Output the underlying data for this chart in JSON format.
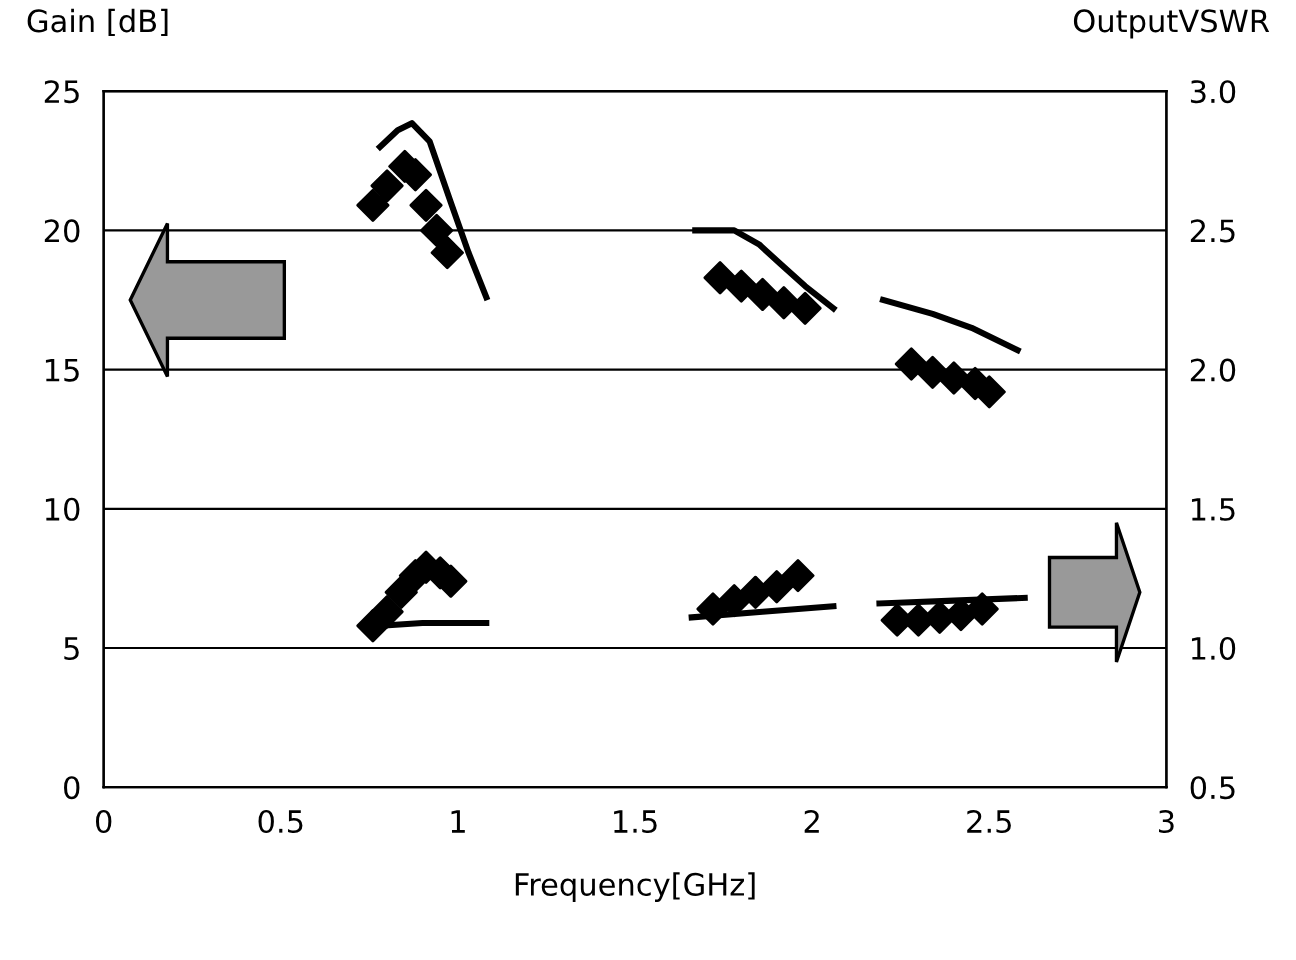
{
  "chart_data": {
    "type": "line",
    "xlabel": "Frequency[GHz]",
    "ylabel": "Gain [dB]",
    "y2label": "OutputVSWR",
    "xlim": [
      0,
      3
    ],
    "xticks": [
      0,
      0.5,
      1,
      1.5,
      2,
      2.5,
      3
    ],
    "ylim": [
      0,
      25
    ],
    "yticks": [
      0,
      5,
      10,
      15,
      20,
      25
    ],
    "y2lim": [
      0.5,
      3.0
    ],
    "y2ticks": [
      0.5,
      {
        "value": 1.0,
        "label": "1.0"
      },
      1.5,
      {
        "value": 2.0,
        "label": "2.0"
      },
      2.5,
      {
        "value": 3.0,
        "label": "3.0"
      }
    ],
    "grid": "y",
    "series": [
      {
        "color": "#000000",
        "marker": "none",
        "x": [
          0.78,
          0.83,
          0.87,
          0.92,
          0.98,
          1.03,
          1.08,
          1.5,
          1.67,
          1.78,
          1.85,
          1.91,
          1.98,
          2.06,
          2.1,
          2.2,
          2.34,
          2.45,
          2.58
        ],
        "values": [
          23.0,
          23.6,
          23.85,
          23.2,
          21.0,
          19.2,
          17.6,
          null,
          20.0,
          20.0,
          19.5,
          18.8,
          18.0,
          17.2,
          null,
          17.5,
          17.0,
          16.5,
          15.7
        ]
      },
      {
        "type": "scatter",
        "color": "#000000",
        "marker": "diamond",
        "x": [
          0.76,
          0.8,
          0.85,
          0.88,
          0.91,
          0.94,
          0.97,
          1.74,
          1.8,
          1.86,
          1.92,
          1.98,
          2.28,
          2.34,
          2.4,
          2.46,
          2.5
        ],
        "values": [
          20.9,
          21.6,
          22.3,
          22.0,
          20.9,
          20.0,
          19.2,
          18.3,
          18.0,
          17.7,
          17.4,
          17.2,
          15.2,
          14.9,
          14.7,
          14.5,
          14.2
        ]
      },
      {
        "axis": "y2",
        "color": "#000000",
        "marker": "none",
        "x": [
          0.78,
          0.9,
          1.08,
          1.5,
          1.66,
          1.86,
          2.06,
          2.1,
          2.19,
          2.4,
          2.6
        ],
        "values": [
          1.08,
          1.09,
          1.09,
          null,
          1.11,
          1.13,
          1.15,
          null,
          1.16,
          1.17,
          1.18
        ]
      },
      {
        "type": "scatter",
        "axis": "y2",
        "color": "#000000",
        "marker": "diamond",
        "x": [
          0.76,
          0.8,
          0.84,
          0.88,
          0.91,
          0.95,
          0.98,
          1.72,
          1.78,
          1.84,
          1.9,
          1.96,
          2.24,
          2.3,
          2.36,
          2.42,
          2.48
        ],
        "values": [
          1.08,
          1.13,
          1.2,
          1.26,
          1.29,
          1.27,
          1.24,
          1.14,
          1.17,
          1.2,
          1.22,
          1.26,
          1.1,
          1.1,
          1.11,
          1.12,
          1.14
        ]
      }
    ]
  }
}
